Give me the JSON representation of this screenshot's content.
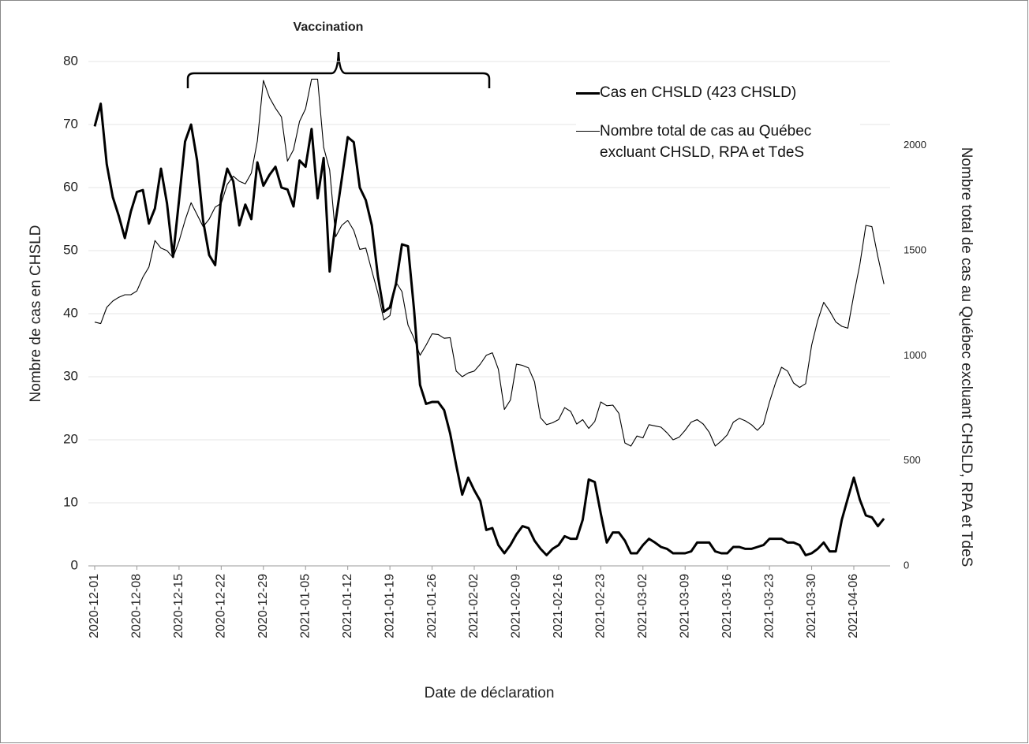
{
  "chart_data": {
    "type": "line",
    "title": "Vaccination",
    "x_label": "Date de déclaration",
    "y_label": "Nombre de cas en CHSLD",
    "y2_label": "Nombre total de cas au Québec excluant  CHSLD, RPA et TdeS",
    "x": [
      "2020-12-01",
      "2020-12-02",
      "2020-12-03",
      "2020-12-04",
      "2020-12-05",
      "2020-12-06",
      "2020-12-07",
      "2020-12-08",
      "2020-12-09",
      "2020-12-10",
      "2020-12-11",
      "2020-12-12",
      "2020-12-13",
      "2020-12-14",
      "2020-12-15",
      "2020-12-16",
      "2020-12-17",
      "2020-12-18",
      "2020-12-19",
      "2020-12-20",
      "2020-12-21",
      "2020-12-22",
      "2020-12-23",
      "2020-12-24",
      "2020-12-25",
      "2020-12-26",
      "2020-12-27",
      "2020-12-28",
      "2020-12-29",
      "2020-12-30",
      "2020-12-31",
      "2021-01-01",
      "2021-01-02",
      "2021-01-03",
      "2021-01-04",
      "2021-01-05",
      "2021-01-06",
      "2021-01-07",
      "2021-01-08",
      "2021-01-09",
      "2021-01-10",
      "2021-01-11",
      "2021-01-12",
      "2021-01-13",
      "2021-01-14",
      "2021-01-15",
      "2021-01-16",
      "2021-01-17",
      "2021-01-18",
      "2021-01-19",
      "2021-01-20",
      "2021-01-21",
      "2021-01-22",
      "2021-01-23",
      "2021-01-24",
      "2021-01-25",
      "2021-01-26",
      "2021-01-27",
      "2021-01-28",
      "2021-01-29",
      "2021-01-30",
      "2021-01-31",
      "2021-02-01",
      "2021-02-02",
      "2021-02-03",
      "2021-02-04",
      "2021-02-05",
      "2021-02-06",
      "2021-02-07",
      "2021-02-08",
      "2021-02-09",
      "2021-02-10",
      "2021-02-11",
      "2021-02-12",
      "2021-02-13",
      "2021-02-14",
      "2021-02-15",
      "2021-02-16",
      "2021-02-17",
      "2021-02-18",
      "2021-02-19",
      "2021-02-20",
      "2021-02-21",
      "2021-02-22",
      "2021-02-23",
      "2021-02-24",
      "2021-02-25",
      "2021-02-26",
      "2021-02-27",
      "2021-02-28",
      "2021-03-01",
      "2021-03-02",
      "2021-03-03",
      "2021-03-04",
      "2021-03-05",
      "2021-03-06",
      "2021-03-07",
      "2021-03-08",
      "2021-03-09",
      "2021-03-10",
      "2021-03-11",
      "2021-03-12",
      "2021-03-13",
      "2021-03-14",
      "2021-03-15",
      "2021-03-16",
      "2021-03-17",
      "2021-03-18",
      "2021-03-19",
      "2021-03-20",
      "2021-03-21",
      "2021-03-22",
      "2021-03-23",
      "2021-03-24",
      "2021-03-25",
      "2021-03-26",
      "2021-03-27",
      "2021-03-28",
      "2021-03-29",
      "2021-03-30",
      "2021-03-31",
      "2021-04-01",
      "2021-04-02",
      "2021-04-03",
      "2021-04-04",
      "2021-04-05",
      "2021-04-06",
      "2021-04-07",
      "2021-04-08",
      "2021-04-09",
      "2021-04-10",
      "2021-04-11"
    ],
    "xticks": [
      "2020-12-01",
      "2020-12-08",
      "2020-12-15",
      "2020-12-22",
      "2020-12-29",
      "2021-01-05",
      "2021-01-12",
      "2021-01-19",
      "2021-01-26",
      "2021-02-02",
      "2021-02-09",
      "2021-02-16",
      "2021-02-23",
      "2021-03-02",
      "2021-03-09",
      "2021-03-16",
      "2021-03-23",
      "2021-03-30",
      "2021-04-06"
    ],
    "ylim": [
      0,
      80
    ],
    "yticks": [
      0,
      10,
      20,
      30,
      40,
      50,
      60,
      70,
      80
    ],
    "y2lim": [
      0,
      2400
    ],
    "y2ticks": [
      0,
      500,
      1000,
      1500,
      2000
    ],
    "grid": true,
    "series": [
      {
        "name": "Cas en CHSLD (423 CHSLD)",
        "color": "#000000",
        "values": [
          69.7,
          73.3,
          63.7,
          58.5,
          55.5,
          52,
          56.2,
          59.3,
          59.6,
          54.3,
          56.7,
          63,
          57.5,
          49,
          58,
          67.3,
          70,
          64.3,
          54.7,
          49.3,
          47.7,
          58.7,
          63,
          61,
          54,
          57.3,
          55,
          64,
          60.3,
          62,
          63.3,
          60,
          59.7,
          57,
          64.3,
          63.3,
          69.3,
          58.3,
          64.7,
          46.7,
          54.7,
          61.3,
          68,
          67.2,
          60,
          58,
          54,
          46,
          40.3,
          41,
          44.7,
          51,
          50.7,
          40.7,
          28.7,
          25.7,
          26,
          26,
          24.7,
          21,
          16,
          11.3,
          14,
          12,
          10.3,
          5.7,
          6,
          3.3,
          2,
          3.3,
          5,
          6.3,
          6,
          4,
          2.7,
          1.7,
          2.7,
          3.3,
          4.7,
          4.3,
          4.3,
          7.3,
          13.7,
          13.3,
          8.3,
          3.7,
          5.3,
          5.3,
          4,
          2,
          2,
          3.3,
          4.3,
          3.7,
          3,
          2.7,
          2,
          2,
          2,
          2.3,
          3.7,
          3.7,
          3.7,
          2.3,
          2,
          2,
          3,
          3,
          2.7,
          2.7,
          3,
          3.3,
          4.3,
          4.3,
          4.3,
          3.7,
          3.7,
          3.3,
          1.7,
          2,
          2.7,
          3.7,
          2.3,
          2.3,
          7.3,
          10.7,
          14,
          10.5,
          8,
          7.7,
          6.3,
          7.5
        ]
      },
      {
        "name": "Nombre total de cas au Québec excluant CHSLD, RPA et TdeS",
        "color": "#000000",
        "axis": "y2",
        "values": [
          1160,
          1153,
          1230,
          1260,
          1278,
          1290,
          1290,
          1308,
          1374,
          1422,
          1548,
          1512,
          1500,
          1467,
          1545,
          1644,
          1728,
          1671,
          1614,
          1650,
          1707,
          1725,
          1815,
          1854,
          1830,
          1818,
          1869,
          2022,
          2310,
          2229,
          2178,
          2136,
          1926,
          1980,
          2115,
          2175,
          2316,
          2316,
          1992,
          1884,
          1566,
          1620,
          1644,
          1596,
          1506,
          1512,
          1404,
          1299,
          1170,
          1191,
          1350,
          1305,
          1146,
          1083,
          1002,
          1050,
          1104,
          1101,
          1083,
          1086,
          927,
          900,
          918,
          927,
          960,
          1002,
          1014,
          936,
          744,
          789,
          960,
          954,
          942,
          876,
          705,
          672,
          681,
          696,
          753,
          735,
          675,
          696,
          654,
          687,
          780,
          762,
          765,
          726,
          585,
          570,
          618,
          609,
          672,
          666,
          660,
          633,
          600,
          612,
          645,
          684,
          696,
          675,
          636,
          570,
          594,
          624,
          684,
          702,
          690,
          672,
          645,
          675,
          780,
          870,
          945,
          927,
          870,
          849,
          867,
          1050,
          1167,
          1254,
          1212,
          1161,
          1140,
          1131,
          1290,
          1434,
          1620,
          1614,
          1470,
          1341
        ]
      }
    ]
  }
}
